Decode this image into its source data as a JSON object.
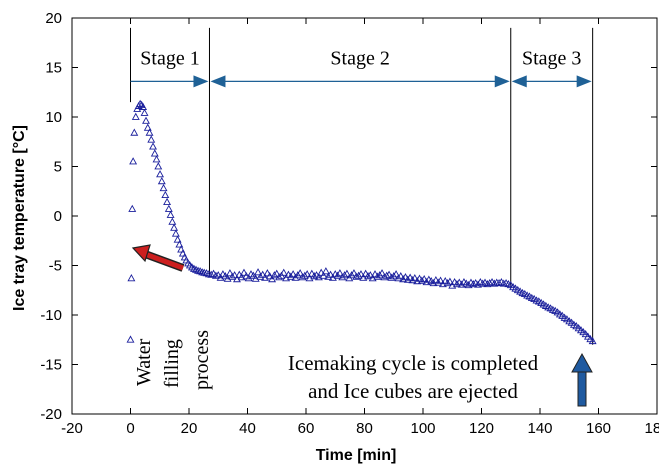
{
  "chart_data": {
    "type": "scatter",
    "xlabel": "Time [min]",
    "ylabel": "Ice tray temperature [°C]",
    "xlim": [
      -20,
      180
    ],
    "ylim": [
      -20,
      20
    ],
    "x_ticks": [
      -20,
      0,
      20,
      40,
      60,
      80,
      100,
      120,
      140,
      160,
      180
    ],
    "y_ticks": [
      -20,
      -15,
      -10,
      -5,
      0,
      5,
      10,
      15,
      20
    ],
    "grid": false,
    "marker": "open-triangle",
    "colors": {
      "data": "#1a1f9c",
      "flow_arrow": "#1f6196",
      "water_arrow": "#cc1f1f",
      "eject_arrow": "#1f5aa0"
    },
    "stage_boundaries": [
      0,
      27,
      130,
      158
    ],
    "stages": [
      {
        "label": "Stage 1",
        "from": 0,
        "to": 27
      },
      {
        "label": "Stage 2",
        "from": 27,
        "to": 130
      },
      {
        "label": "Stage 3",
        "from": 130,
        "to": 158
      }
    ],
    "annotations": {
      "water_filling": [
        "Water",
        "filling",
        "process"
      ],
      "ejection": [
        "Icemaking cycle is completed",
        "and Ice cubes are ejected"
      ]
    },
    "series": [
      {
        "points": [
          [
            0,
            -12.5
          ],
          [
            0.3,
            -6.3
          ],
          [
            0.6,
            0.7
          ],
          [
            0.9,
            5.5
          ],
          [
            1.3,
            8.4
          ],
          [
            1.8,
            10.0
          ],
          [
            2.3,
            10.8
          ],
          [
            2.8,
            11.1
          ],
          [
            3.3,
            11.3
          ],
          [
            3.8,
            11.2
          ],
          [
            4.3,
            11.0
          ],
          [
            4.8,
            10.4
          ],
          [
            5.3,
            9.6
          ],
          [
            5.9,
            8.9
          ],
          [
            6.5,
            8.4
          ],
          [
            7.1,
            7.7
          ],
          [
            7.7,
            7.0
          ],
          [
            8.3,
            6.3
          ],
          [
            8.9,
            5.7
          ],
          [
            9.5,
            5.0
          ],
          [
            10.1,
            4.2
          ],
          [
            10.7,
            3.5
          ],
          [
            11.3,
            2.8
          ],
          [
            11.9,
            2.1
          ],
          [
            12.5,
            1.4
          ],
          [
            13.1,
            0.7
          ],
          [
            13.7,
            0.1
          ],
          [
            14.3,
            -0.6
          ],
          [
            14.9,
            -1.2
          ],
          [
            15.5,
            -1.8
          ],
          [
            16.1,
            -2.4
          ],
          [
            16.7,
            -2.9
          ],
          [
            17.3,
            -3.4
          ],
          [
            17.9,
            -3.8
          ],
          [
            18.5,
            -4.2
          ],
          [
            19.1,
            -4.5
          ],
          [
            19.7,
            -4.8
          ],
          [
            20.3,
            -5.0
          ],
          [
            21.0,
            -5.2
          ],
          [
            21.7,
            -5.35
          ],
          [
            22.4,
            -5.45
          ],
          [
            23.1,
            -5.55
          ],
          [
            23.8,
            -5.6
          ],
          [
            24.5,
            -5.7
          ],
          [
            25.2,
            -5.75
          ],
          [
            26.0,
            -5.8
          ],
          [
            26.8,
            -5.9
          ],
          [
            27.6,
            -5.95
          ],
          [
            28.4,
            -5.85
          ],
          [
            29.2,
            -6.05
          ],
          [
            30.0,
            -6.0
          ],
          [
            30.8,
            -6.25
          ],
          [
            31.6,
            -5.9
          ],
          [
            32.4,
            -6.1
          ],
          [
            33.2,
            -6.35
          ],
          [
            34.0,
            -5.8
          ],
          [
            34.8,
            -6.15
          ],
          [
            35.6,
            -6.0
          ],
          [
            36.4,
            -6.4
          ],
          [
            37.2,
            -5.95
          ],
          [
            38.0,
            -6.2
          ],
          [
            38.8,
            -5.75
          ],
          [
            39.6,
            -6.1
          ],
          [
            40.4,
            -6.3
          ],
          [
            41.2,
            -5.9
          ],
          [
            42.0,
            -6.05
          ],
          [
            42.8,
            -6.35
          ],
          [
            43.6,
            -5.7
          ],
          [
            44.4,
            -6.15
          ],
          [
            45.2,
            -5.95
          ],
          [
            46.0,
            -6.25
          ],
          [
            46.8,
            -5.8
          ],
          [
            47.6,
            -6.1
          ],
          [
            48.4,
            -6.4
          ],
          [
            49.2,
            -6.0
          ],
          [
            50.0,
            -5.85
          ],
          [
            50.8,
            -6.2
          ],
          [
            51.6,
            -6.05
          ],
          [
            52.4,
            -5.75
          ],
          [
            53.2,
            -6.3
          ],
          [
            54.0,
            -5.95
          ],
          [
            54.8,
            -6.15
          ],
          [
            55.6,
            -5.9
          ],
          [
            56.4,
            -6.25
          ],
          [
            57.2,
            -6.0
          ],
          [
            58.0,
            -5.8
          ],
          [
            58.8,
            -6.2
          ],
          [
            59.6,
            -6.05
          ],
          [
            60.4,
            -5.9
          ],
          [
            61.2,
            -6.3
          ],
          [
            62.0,
            -5.85
          ],
          [
            62.8,
            -6.1
          ],
          [
            63.6,
            -6.0
          ],
          [
            64.4,
            -6.2
          ],
          [
            65.2,
            -5.75
          ],
          [
            66.0,
            -6.05
          ],
          [
            66.8,
            -5.6
          ],
          [
            67.6,
            -6.15
          ],
          [
            68.4,
            -5.95
          ],
          [
            69.2,
            -6.25
          ],
          [
            70.0,
            -5.9
          ],
          [
            70.8,
            -6.05
          ],
          [
            71.6,
            -5.8
          ],
          [
            72.4,
            -6.2
          ],
          [
            73.2,
            -6.0
          ],
          [
            74.0,
            -5.85
          ],
          [
            74.8,
            -6.3
          ],
          [
            75.6,
            -6.0
          ],
          [
            76.4,
            -5.8
          ],
          [
            77.2,
            -6.15
          ],
          [
            78.0,
            -6.05
          ],
          [
            78.8,
            -5.9
          ],
          [
            79.6,
            -6.25
          ],
          [
            80.4,
            -5.85
          ],
          [
            81.2,
            -6.1
          ],
          [
            82.0,
            -6.0
          ],
          [
            82.8,
            -6.3
          ],
          [
            83.6,
            -5.9
          ],
          [
            84.4,
            -6.15
          ],
          [
            85.2,
            -6.0
          ],
          [
            86.0,
            -5.8
          ],
          [
            86.8,
            -6.2
          ],
          [
            87.6,
            -6.05
          ],
          [
            88.4,
            -5.95
          ],
          [
            89.2,
            -6.25
          ],
          [
            90.0,
            -6.1
          ],
          [
            90.8,
            -5.9
          ],
          [
            91.6,
            -6.3
          ],
          [
            92.4,
            -6.1
          ],
          [
            93.2,
            -6.4
          ],
          [
            94.0,
            -6.2
          ],
          [
            94.8,
            -6.45
          ],
          [
            95.6,
            -6.25
          ],
          [
            96.4,
            -6.5
          ],
          [
            97.2,
            -6.3
          ],
          [
            98.0,
            -6.6
          ],
          [
            98.8,
            -6.35
          ],
          [
            99.6,
            -6.55
          ],
          [
            100.4,
            -6.4
          ],
          [
            101.2,
            -6.7
          ],
          [
            102.0,
            -6.45
          ],
          [
            102.8,
            -6.6
          ],
          [
            103.6,
            -6.8
          ],
          [
            104.4,
            -6.5
          ],
          [
            105.2,
            -6.75
          ],
          [
            106.0,
            -6.55
          ],
          [
            106.8,
            -6.9
          ],
          [
            107.6,
            -6.6
          ],
          [
            108.4,
            -6.8
          ],
          [
            109.2,
            -6.65
          ],
          [
            110.0,
            -7.05
          ],
          [
            110.8,
            -6.7
          ],
          [
            111.6,
            -6.9
          ],
          [
            112.4,
            -6.75
          ],
          [
            113.2,
            -6.95
          ],
          [
            114.0,
            -6.7
          ],
          [
            114.8,
            -6.85
          ],
          [
            115.6,
            -7.0
          ],
          [
            116.4,
            -6.75
          ],
          [
            117.2,
            -6.9
          ],
          [
            118.0,
            -6.8
          ],
          [
            118.8,
            -6.95
          ],
          [
            119.6,
            -6.7
          ],
          [
            120.4,
            -6.85
          ],
          [
            121.2,
            -6.75
          ],
          [
            122.0,
            -6.9
          ],
          [
            122.8,
            -6.8
          ],
          [
            123.6,
            -6.7
          ],
          [
            124.4,
            -6.85
          ],
          [
            125.2,
            -6.75
          ],
          [
            126.0,
            -6.8
          ],
          [
            126.8,
            -6.7
          ],
          [
            127.6,
            -6.85
          ],
          [
            128.4,
            -6.8
          ],
          [
            129.2,
            -6.9
          ],
          [
            130.0,
            -7.0
          ],
          [
            130.8,
            -7.2
          ],
          [
            131.6,
            -7.35
          ],
          [
            132.4,
            -7.5
          ],
          [
            133.2,
            -7.65
          ],
          [
            134.0,
            -7.8
          ],
          [
            134.8,
            -7.9
          ],
          [
            135.6,
            -8.05
          ],
          [
            136.4,
            -8.15
          ],
          [
            137.2,
            -8.3
          ],
          [
            138.0,
            -8.4
          ],
          [
            138.8,
            -8.55
          ],
          [
            139.6,
            -8.65
          ],
          [
            140.4,
            -8.8
          ],
          [
            141.2,
            -8.95
          ],
          [
            142.0,
            -9.1
          ],
          [
            142.8,
            -9.25
          ],
          [
            143.6,
            -9.35
          ],
          [
            144.4,
            -9.5
          ],
          [
            145.2,
            -9.6
          ],
          [
            146.0,
            -9.75
          ],
          [
            146.8,
            -9.95
          ],
          [
            147.6,
            -10.1
          ],
          [
            148.4,
            -10.3
          ],
          [
            149.2,
            -10.45
          ],
          [
            150.0,
            -10.65
          ],
          [
            150.8,
            -10.8
          ],
          [
            151.6,
            -11.0
          ],
          [
            152.4,
            -11.15
          ],
          [
            153.2,
            -11.35
          ],
          [
            154.0,
            -11.55
          ],
          [
            154.8,
            -11.75
          ],
          [
            155.6,
            -11.95
          ],
          [
            156.4,
            -12.2
          ],
          [
            157.2,
            -12.45
          ],
          [
            158.0,
            -12.65
          ]
        ]
      }
    ]
  }
}
